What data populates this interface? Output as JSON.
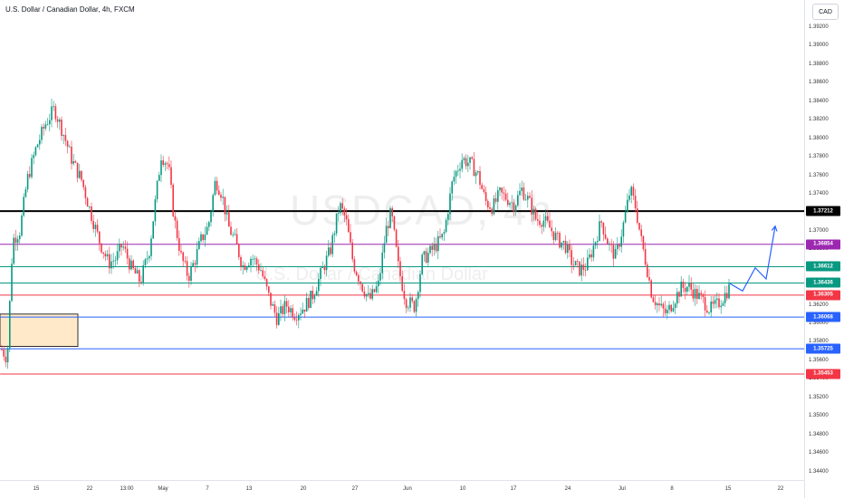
{
  "header": {
    "title": "U.S. Dollar / Canadian Dollar, 4h, FXCM",
    "currency": "CAD"
  },
  "watermark": {
    "symbol": "USDCAD, 4h",
    "description": "U.S. Dollar / Canadian Dollar"
  },
  "chart_data": {
    "type": "candlestick",
    "title": "U.S. Dollar / Canadian Dollar, 4h, FXCM",
    "ylim": [
      1.343,
      1.393
    ],
    "y_ticks": [
      "1.39200",
      "1.39000",
      "1.38800",
      "1.38600",
      "1.38400",
      "1.38200",
      "1.38000",
      "1.37800",
      "1.37600",
      "1.37400",
      "1.37200",
      "1.37000",
      "1.36800",
      "1.36600",
      "1.36400",
      "1.36200",
      "1.36000",
      "1.35800",
      "1.35600",
      "1.35400",
      "1.35200",
      "1.35000",
      "1.34800",
      "1.34600",
      "1.34400"
    ],
    "x_ticks": [
      "15",
      "22",
      "13:00",
      "May",
      "7",
      "13",
      "20",
      "27",
      "Jun",
      "10",
      "17",
      "24",
      "Jul",
      "8",
      "15",
      "22"
    ],
    "up_color": "#089981",
    "down_color": "#f23645",
    "price_path": [
      [
        0,
        1.3575
      ],
      [
        8,
        1.3562
      ],
      [
        14,
        1.369
      ],
      [
        22,
        1.37
      ],
      [
        30,
        1.3755
      ],
      [
        40,
        1.379
      ],
      [
        50,
        1.3815
      ],
      [
        60,
        1.3832
      ],
      [
        70,
        1.3805
      ],
      [
        80,
        1.3775
      ],
      [
        90,
        1.3755
      ],
      [
        100,
        1.372
      ],
      [
        110,
        1.3688
      ],
      [
        120,
        1.3665
      ],
      [
        128,
        1.367
      ],
      [
        135,
        1.3685
      ],
      [
        145,
        1.366
      ],
      [
        155,
        1.3645
      ],
      [
        165,
        1.368
      ],
      [
        172,
        1.3735
      ],
      [
        178,
        1.3782
      ],
      [
        186,
        1.377
      ],
      [
        192,
        1.3715
      ],
      [
        200,
        1.3672
      ],
      [
        208,
        1.365
      ],
      [
        215,
        1.3668
      ],
      [
        222,
        1.369
      ],
      [
        230,
        1.3705
      ],
      [
        238,
        1.3755
      ],
      [
        245,
        1.374
      ],
      [
        252,
        1.3705
      ],
      [
        260,
        1.3688
      ],
      [
        268,
        1.3662
      ],
      [
        278,
        1.3672
      ],
      [
        288,
        1.3658
      ],
      [
        298,
        1.3625
      ],
      [
        306,
        1.3605
      ],
      [
        316,
        1.362
      ],
      [
        326,
        1.361
      ],
      [
        336,
        1.3618
      ],
      [
        345,
        1.363
      ],
      [
        355,
        1.3655
      ],
      [
        365,
        1.368
      ],
      [
        375,
        1.3728
      ],
      [
        382,
        1.3712
      ],
      [
        390,
        1.3665
      ],
      [
        400,
        1.364
      ],
      [
        408,
        1.3625
      ],
      [
        418,
        1.3642
      ],
      [
        426,
        1.37
      ],
      [
        432,
        1.372
      ],
      [
        440,
        1.366
      ],
      [
        448,
        1.3625
      ],
      [
        458,
        1.3618
      ],
      [
        466,
        1.3668
      ],
      [
        478,
        1.368
      ],
      [
        490,
        1.3695
      ],
      [
        500,
        1.3755
      ],
      [
        510,
        1.3778
      ],
      [
        520,
        1.3772
      ],
      [
        528,
        1.376
      ],
      [
        536,
        1.3732
      ],
      [
        544,
        1.3725
      ],
      [
        552,
        1.374
      ],
      [
        560,
        1.3735
      ],
      [
        568,
        1.3728
      ],
      [
        576,
        1.3745
      ],
      [
        584,
        1.3732
      ],
      [
        592,
        1.3712
      ],
      [
        600,
        1.3712
      ],
      [
        608,
        1.3702
      ],
      [
        616,
        1.369
      ],
      [
        624,
        1.3685
      ],
      [
        632,
        1.3665
      ],
      [
        640,
        1.3658
      ],
      [
        648,
        1.3662
      ],
      [
        656,
        1.3685
      ],
      [
        664,
        1.371
      ],
      [
        672,
        1.3685
      ],
      [
        680,
        1.3672
      ],
      [
        688,
        1.3705
      ],
      [
        696,
        1.3745
      ],
      [
        702,
        1.3725
      ],
      [
        708,
        1.369
      ],
      [
        714,
        1.3662
      ],
      [
        720,
        1.363
      ],
      [
        728,
        1.3618
      ],
      [
        736,
        1.361
      ],
      [
        744,
        1.3625
      ],
      [
        752,
        1.3638
      ],
      [
        760,
        1.364
      ],
      [
        768,
        1.3632
      ],
      [
        776,
        1.3625
      ],
      [
        784,
        1.3615
      ],
      [
        792,
        1.362
      ],
      [
        800,
        1.363
      ],
      [
        806,
        1.364
      ]
    ],
    "levels": [
      {
        "value": "1.37212",
        "color": "#000000"
      },
      {
        "value": "1.36854",
        "color": "#9c27b0"
      },
      {
        "value": "1.36612",
        "color": "#089981"
      },
      {
        "value": "1.36436",
        "color": "#089981"
      },
      {
        "value": "1.36305",
        "color": "#f23645"
      },
      {
        "value": "1.36068",
        "color": "#2962ff"
      },
      {
        "value": "1.35725",
        "color": "#2962ff"
      },
      {
        "value": "1.35453",
        "color": "#f23645"
      }
    ],
    "demand_zone": {
      "from": 1.3575,
      "to": 1.361,
      "color": "#ffe0b2"
    },
    "projection": [
      [
        806,
        1.3643
      ],
      [
        820,
        1.3635
      ],
      [
        834,
        1.366
      ],
      [
        846,
        1.3648
      ],
      [
        856,
        1.3705
      ]
    ]
  }
}
